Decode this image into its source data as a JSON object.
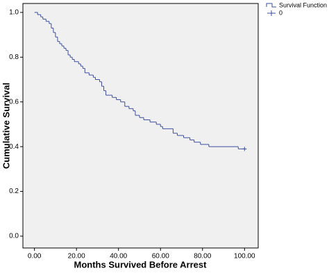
{
  "chart_data": {
    "type": "step",
    "xlabel": "Months Survived Before Arrest",
    "ylabel": "Cumulative Survival",
    "x": [
      0,
      1.5,
      3,
      4,
      5.5,
      7,
      8,
      9,
      10,
      11,
      12,
      13,
      14,
      15,
      16,
      17,
      18,
      19,
      21,
      22,
      23,
      24,
      26,
      28,
      29,
      31,
      32,
      33,
      34,
      37,
      39,
      41,
      43,
      45,
      47,
      48,
      50,
      52,
      55,
      58,
      60,
      61,
      66,
      68,
      71,
      74,
      76,
      79,
      83,
      97
    ],
    "series": [
      {
        "name": "Survival Function",
        "color": "#3b4ea0",
        "values": [
          1.0,
          0.99,
          0.98,
          0.97,
          0.96,
          0.95,
          0.93,
          0.91,
          0.89,
          0.87,
          0.86,
          0.85,
          0.84,
          0.83,
          0.81,
          0.8,
          0.79,
          0.78,
          0.77,
          0.76,
          0.75,
          0.73,
          0.72,
          0.71,
          0.7,
          0.69,
          0.67,
          0.65,
          0.63,
          0.62,
          0.61,
          0.6,
          0.58,
          0.57,
          0.56,
          0.54,
          0.53,
          0.52,
          0.51,
          0.5,
          0.49,
          0.48,
          0.46,
          0.45,
          0.44,
          0.43,
          0.42,
          0.41,
          0.4,
          0.39
        ]
      }
    ],
    "censored": {
      "name": "0",
      "x": [
        100
      ],
      "values": [
        0.39
      ]
    },
    "xlim": [
      -5.5,
      106.5
    ],
    "ylim": [
      -0.053,
      1.04
    ],
    "xticks": [
      {
        "value": 0,
        "label": "0.00"
      },
      {
        "value": 20,
        "label": "20.00"
      },
      {
        "value": 40,
        "label": "40.00"
      },
      {
        "value": 60,
        "label": "60.00"
      },
      {
        "value": 80,
        "label": "80.00"
      },
      {
        "value": 100,
        "label": "100.00"
      }
    ],
    "yticks": [
      {
        "value": 0,
        "label": "0.0"
      },
      {
        "value": 0.2,
        "label": "0.2"
      },
      {
        "value": 0.4,
        "label": "0.4"
      },
      {
        "value": 0.6,
        "label": "0.6"
      },
      {
        "value": 0.8,
        "label": "0.8"
      },
      {
        "value": 1.0,
        "label": "1.0"
      }
    ],
    "grid": false
  }
}
